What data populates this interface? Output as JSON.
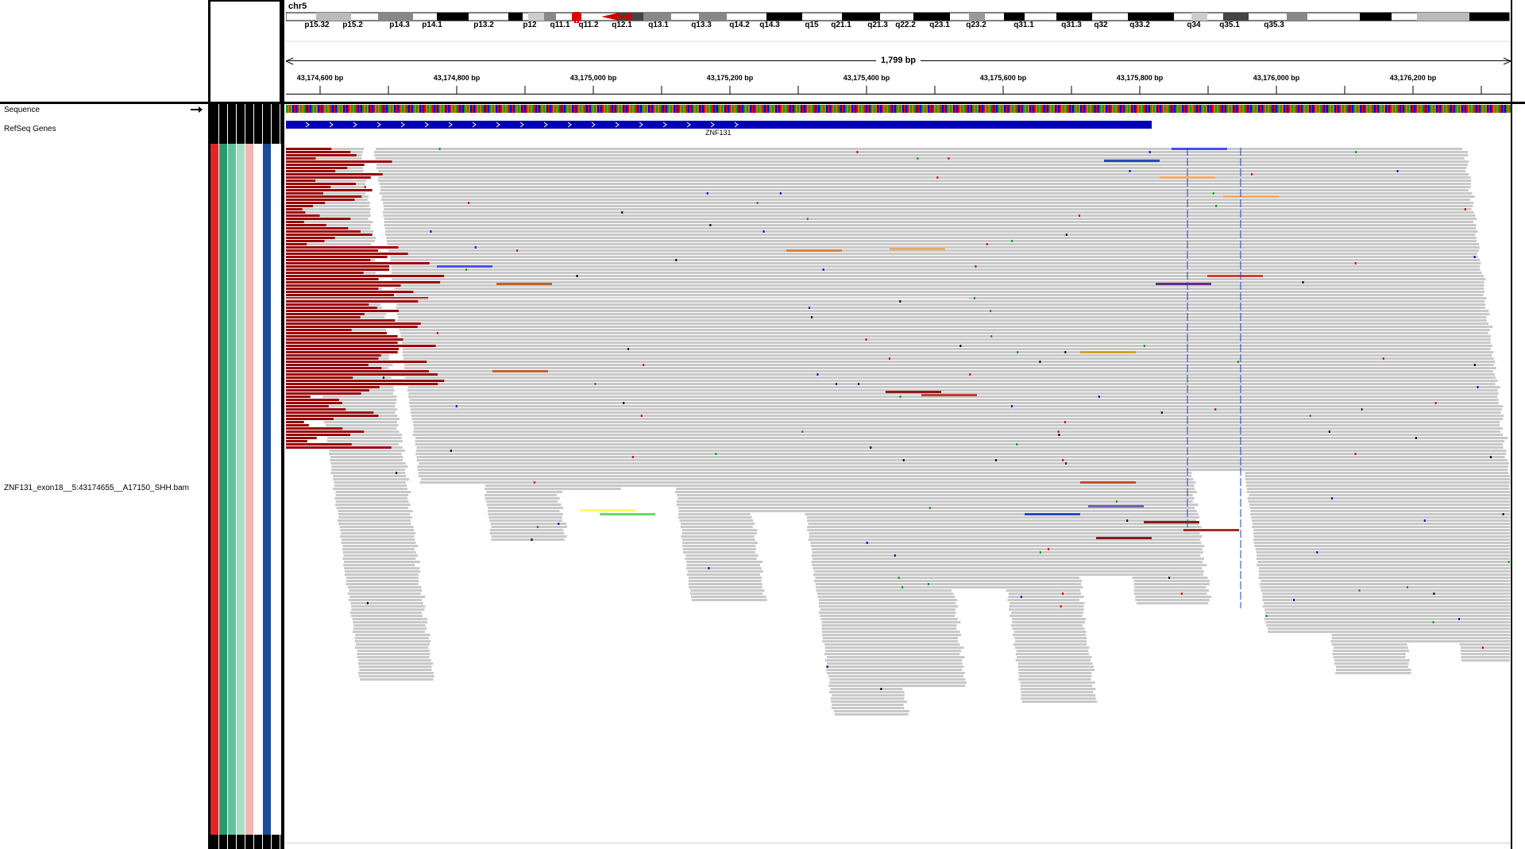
{
  "header": {
    "chromosome": "chr5",
    "span_label": "1,799 bp",
    "cytobands": [
      "p15.32",
      "p15.2",
      "p14.3",
      "p14.1",
      "p13.2",
      "p12",
      "q11.1",
      "q11.2",
      "q12.1",
      "q13.1",
      "q13.3",
      "q14.2",
      "q14.3",
      "q15",
      "q21.1",
      "q21.3",
      "q22.2",
      "q23.1",
      "q23.2",
      "q31.1",
      "q31.3",
      "q32",
      "q33.2",
      "q34",
      "q35.1",
      "q35.3"
    ],
    "ruler_ticks": [
      "43,174,600 bp",
      "43,174,800 bp",
      "43,175,000 bp",
      "43,175,200 bp",
      "43,175,400 bp",
      "43,175,600 bp",
      "43,175,800 bp",
      "43,176,000 bp",
      "43,176,200 bp"
    ]
  },
  "tracks": {
    "sequence": "Sequence",
    "refseq": "RefSeq Genes",
    "alignment": "ZNF131_exon18__5:43174655__A17150_SHH.bam"
  },
  "gene": {
    "name": "ZNF131"
  },
  "colors": {
    "read": "#c8c8c8",
    "clipped": "#990000",
    "gene": "#0000b3",
    "attr_columns": [
      "#e1232a",
      "#2d9a6e",
      "#5ec4a0",
      "#a8dcc8",
      "#f4b6b0",
      "#ffffff",
      "#1a4c9c",
      "#ffffff"
    ]
  },
  "icons": {
    "sequence_direction": "right-arrow-icon"
  }
}
